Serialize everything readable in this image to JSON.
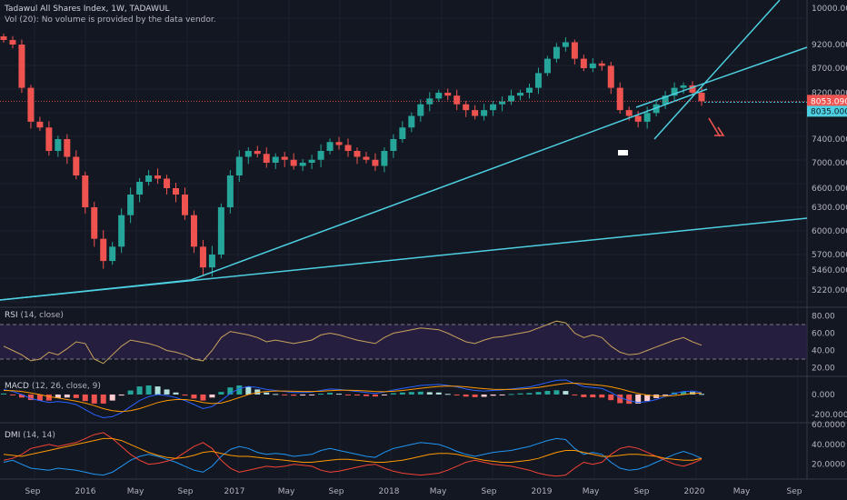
{
  "header": {
    "title": "Tadawul All Shares Index, 1W, TADAWUL",
    "volume_note": "Vol (20): No volume is provided by the data vendor."
  },
  "chart_data": [
    {
      "type": "candlestick",
      "pane": "price",
      "title": "Tadawul All Shares Index, 1W, TADAWUL",
      "y_ticks": [
        "10000.000",
        "9200.000",
        "8700.000",
        "8200.000",
        "7400.000",
        "7000.000",
        "6600.000",
        "6300.000",
        "6000.000",
        "5700.000",
        "5460.000",
        "5220.000"
      ],
      "last_price_label": "8053.090",
      "secondary_label": "8035.000",
      "last_price_value": 8053.09,
      "close_series": [
        9300,
        9200,
        8300,
        7700,
        7600,
        7200,
        7400,
        7100,
        6800,
        6300,
        5900,
        5600,
        5800,
        6200,
        6500,
        6700,
        6800,
        6750,
        6600,
        6500,
        6200,
        5800,
        5500,
        5700,
        6300,
        6800,
        7100,
        7200,
        7150,
        7000,
        7100,
        7050,
        6950,
        7000,
        7050,
        7200,
        7350,
        7300,
        7200,
        7100,
        7050,
        6950,
        7200,
        7400,
        7600,
        7800,
        8000,
        8100,
        8200,
        8150,
        8000,
        7900,
        7800,
        7900,
        8000,
        8050,
        8150,
        8200,
        8300,
        8600,
        8900,
        9150,
        9250,
        8900,
        8700,
        8800,
        8750,
        8300,
        7900,
        7800,
        7700,
        7850,
        8000,
        8150,
        8300,
        8350,
        8200,
        8053
      ],
      "trendlines": "rising support lines and a short-term wedge drawn in cyan",
      "annotation": "red down arrow"
    },
    {
      "type": "line",
      "pane": "rsi",
      "label": "RSI",
      "params": "(14, close)",
      "y_ticks": [
        "80.00",
        "60.00",
        "40.00",
        "20.00"
      ],
      "bands": [
        70,
        30
      ],
      "values": [
        45,
        40,
        35,
        28,
        30,
        38,
        35,
        42,
        50,
        48,
        30,
        25,
        35,
        45,
        52,
        50,
        48,
        45,
        40,
        38,
        35,
        30,
        28,
        40,
        55,
        62,
        60,
        58,
        55,
        50,
        52,
        50,
        48,
        50,
        52,
        58,
        60,
        58,
        55,
        52,
        50,
        48,
        55,
        60,
        62,
        64,
        66,
        65,
        64,
        60,
        55,
        50,
        48,
        52,
        55,
        56,
        58,
        60,
        62,
        66,
        70,
        74,
        72,
        60,
        55,
        58,
        55,
        45,
        38,
        35,
        36,
        40,
        44,
        48,
        52,
        55,
        50,
        46
      ]
    },
    {
      "type": "histogram+line",
      "pane": "macd",
      "label": "MACD",
      "params": "(12, 26, close, 9)",
      "y_ticks": [
        "0.000",
        "-200.000"
      ],
      "macd": [
        50,
        30,
        0,
        -40,
        -60,
        -80,
        -70,
        -80,
        -100,
        -150,
        -200,
        -230,
        -220,
        -180,
        -120,
        -60,
        -20,
        0,
        -10,
        -30,
        -60,
        -100,
        -140,
        -120,
        -60,
        10,
        60,
        80,
        70,
        50,
        40,
        30,
        20,
        20,
        25,
        40,
        55,
        50,
        40,
        30,
        20,
        10,
        25,
        45,
        60,
        75,
        90,
        95,
        100,
        90,
        75,
        55,
        40,
        35,
        40,
        45,
        55,
        65,
        75,
        95,
        120,
        140,
        145,
        110,
        80,
        70,
        60,
        20,
        -30,
        -60,
        -80,
        -70,
        -50,
        -20,
        10,
        30,
        35,
        20
      ],
      "signal": [
        40,
        38,
        30,
        15,
        0,
        -20,
        -35,
        -50,
        -65,
        -85,
        -110,
        -140,
        -160,
        -170,
        -160,
        -140,
        -110,
        -80,
        -60,
        -50,
        -50,
        -60,
        -80,
        -90,
        -85,
        -60,
        -30,
        0,
        20,
        30,
        35,
        35,
        32,
        30,
        30,
        32,
        38,
        42,
        42,
        40,
        36,
        30,
        28,
        32,
        40,
        50,
        62,
        72,
        80,
        84,
        82,
        76,
        66,
        58,
        52,
        50,
        50,
        54,
        60,
        70,
        84,
        98,
        110,
        112,
        106,
        98,
        90,
        76,
        56,
        32,
        10,
        -6,
        -15,
        -16,
        -10,
        0,
        10,
        14
      ]
    },
    {
      "type": "line",
      "pane": "dmi",
      "label": "DMI",
      "params": "(14, 14)",
      "y_ticks": [
        "60.0000",
        "40.0000",
        "20.0000"
      ],
      "plus_di": [
        22,
        24,
        20,
        16,
        15,
        14,
        16,
        15,
        14,
        12,
        10,
        9,
        12,
        18,
        24,
        28,
        30,
        28,
        25,
        22,
        18,
        14,
        12,
        18,
        28,
        35,
        38,
        36,
        32,
        30,
        31,
        30,
        28,
        29,
        30,
        34,
        36,
        34,
        32,
        30,
        28,
        27,
        32,
        36,
        38,
        40,
        42,
        41,
        40,
        37,
        33,
        30,
        28,
        30,
        32,
        33,
        34,
        36,
        38,
        41,
        44,
        46,
        45,
        36,
        30,
        32,
        30,
        22,
        16,
        14,
        15,
        18,
        22,
        26,
        30,
        33,
        30,
        26
      ],
      "minus_di": [
        24,
        26,
        30,
        36,
        38,
        40,
        38,
        40,
        42,
        46,
        50,
        52,
        46,
        38,
        30,
        24,
        20,
        21,
        23,
        26,
        32,
        38,
        42,
        36,
        24,
        16,
        12,
        14,
        16,
        18,
        17,
        18,
        20,
        19,
        18,
        14,
        12,
        13,
        15,
        17,
        19,
        20,
        16,
        13,
        11,
        10,
        9,
        10,
        11,
        14,
        18,
        22,
        24,
        22,
        20,
        19,
        18,
        16,
        14,
        11,
        9,
        8,
        9,
        16,
        22,
        20,
        22,
        30,
        36,
        38,
        36,
        32,
        28,
        24,
        20,
        18,
        21,
        25
      ],
      "adx": [
        30,
        29,
        28,
        30,
        32,
        34,
        36,
        38,
        40,
        42,
        44,
        46,
        46,
        44,
        40,
        36,
        32,
        29,
        27,
        26,
        27,
        29,
        32,
        33,
        31,
        29,
        28,
        28,
        27,
        26,
        25,
        24,
        23,
        22,
        22,
        23,
        24,
        25,
        25,
        24,
        23,
        22,
        22,
        23,
        24,
        26,
        28,
        30,
        31,
        31,
        30,
        28,
        26,
        24,
        23,
        22,
        22,
        23,
        24,
        26,
        29,
        32,
        34,
        34,
        32,
        30,
        28,
        28,
        29,
        30,
        30,
        29,
        28,
        26,
        25,
        24,
        24,
        26
      ]
    }
  ],
  "x_axis": {
    "ticks": [
      "Sep",
      "2016",
      "May",
      "Sep",
      "2017",
      "May",
      "Sep",
      "2018",
      "May",
      "Sep",
      "2019",
      "May",
      "Sep",
      "2020",
      "May",
      "Sep"
    ]
  },
  "colors": {
    "background": "#131722",
    "up": "#26a69a",
    "down": "#ef5350",
    "trendline": "#4dd0e1",
    "rsi_line": "#c8a25c",
    "rsi_band": "#2a2147",
    "macd": "#2962ff",
    "signal": "#ff9800",
    "plus_di": "#2196f3",
    "minus_di": "#f44336",
    "adx": "#ff9800"
  }
}
